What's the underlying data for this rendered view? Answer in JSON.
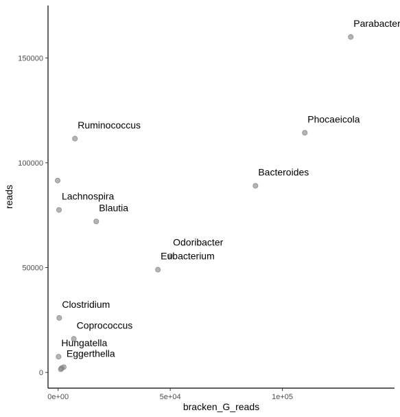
{
  "chart_data": {
    "type": "scatter",
    "title": "",
    "xlabel": "bracken_G_reads",
    "ylabel": "reads",
    "xlim": [
      -4500,
      150000
    ],
    "ylim": [
      -7500,
      175000
    ],
    "x_ticks": [
      {
        "value": 0,
        "label": "0e+00"
      },
      {
        "value": 50000,
        "label": "5e+04"
      },
      {
        "value": 100000,
        "label": "1e+05"
      }
    ],
    "y_ticks": [
      {
        "value": 0,
        "label": "0"
      },
      {
        "value": 50000,
        "label": "50000"
      },
      {
        "value": 100000,
        "label": "100000"
      },
      {
        "value": 150000,
        "label": "150000"
      }
    ],
    "grid": false,
    "legend": "none",
    "point_color": "#8c8c8c",
    "point_stroke": "#6e6e6e",
    "points": [
      {
        "x": 130500,
        "y": 160000
      },
      {
        "x": 110000,
        "y": 114300
      },
      {
        "x": 88000,
        "y": 89000
      },
      {
        "x": 7500,
        "y": 111500
      },
      {
        "x": -200,
        "y": 91500
      },
      {
        "x": 400,
        "y": 77500
      },
      {
        "x": 17000,
        "y": 72000
      },
      {
        "x": 50000,
        "y": 55500
      },
      {
        "x": 44500,
        "y": 49000
      },
      {
        "x": 500,
        "y": 26000
      },
      {
        "x": 7000,
        "y": 16000
      },
      {
        "x": 200,
        "y": 7500
      },
      {
        "x": 2500,
        "y": 2500
      },
      {
        "x": 1500,
        "y": 2000
      },
      {
        "x": 1200,
        "y": 1500
      }
    ],
    "labels": [
      {
        "text": "Parabacteroides",
        "x": 130500,
        "y": 160000
      },
      {
        "text": "Phocaeicola",
        "x": 110000,
        "y": 114300
      },
      {
        "text": "Bacteroides",
        "x": 88000,
        "y": 89000
      },
      {
        "text": "Ruminococcus",
        "x": 7500,
        "y": 111500
      },
      {
        "text": "Lachnospira",
        "x": 400,
        "y": 77500
      },
      {
        "text": "Blautia",
        "x": 17000,
        "y": 72000
      },
      {
        "text": "Odoribacter",
        "x": 50000,
        "y": 55500
      },
      {
        "text": "Eubacterium",
        "x": 44500,
        "y": 49000
      },
      {
        "text": "Clostridium",
        "x": 500,
        "y": 26000
      },
      {
        "text": "Coprococcus",
        "x": 7000,
        "y": 16000
      },
      {
        "text": "Hungatella",
        "x": 200,
        "y": 7500
      },
      {
        "text": "Eggerthella",
        "x": 2500,
        "y": 2500
      }
    ]
  }
}
